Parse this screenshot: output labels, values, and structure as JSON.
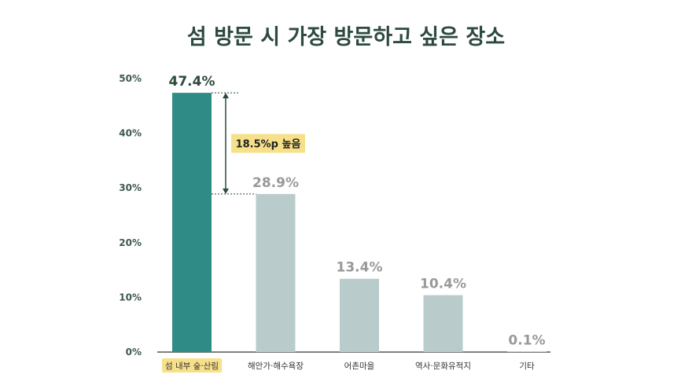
{
  "chart_data": {
    "type": "bar",
    "title": "섬 방문 시 가장 방문하고 싶은 장소",
    "categories": [
      "섬 내부 숲·산림",
      "해안가·해수욕장",
      "어촌마을",
      "역사·문화유적지",
      "기타"
    ],
    "values": [
      47.4,
      28.9,
      13.4,
      10.4,
      0.1
    ],
    "value_labels": [
      "47.4%",
      "28.9%",
      "13.4%",
      "10.4%",
      "0.1%"
    ],
    "ylim": [
      0,
      50
    ],
    "yticks": [
      "0%",
      "10%",
      "20%",
      "30%",
      "40%",
      "50%"
    ],
    "xlabel": "",
    "ylabel": "",
    "grid": false,
    "highlight_index": 0,
    "annotation": {
      "text": "18.5%p 높음",
      "from_index": 0,
      "to_index": 1
    },
    "colors": {
      "highlight": "#2e8b86",
      "default": "#b9cbcb",
      "highlight_value": "#2d4a3e",
      "default_value": "#999999",
      "highlight_label_bg": "#f7e08a",
      "annotation_bg": "#f7e08a",
      "annotation_line": "#2d4a3e",
      "axis": "#333333"
    }
  }
}
